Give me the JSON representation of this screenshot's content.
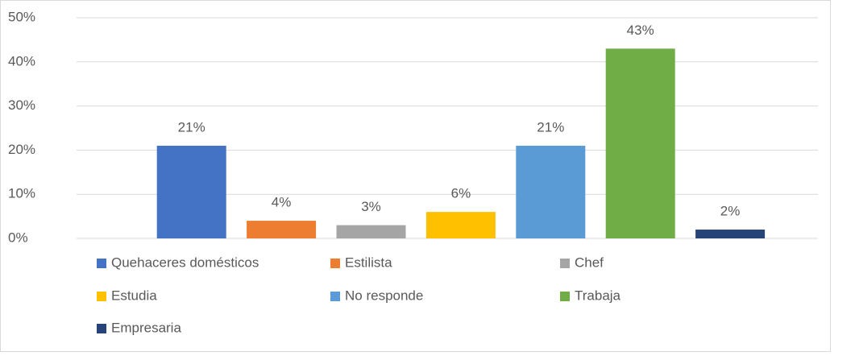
{
  "chart_data": {
    "type": "bar",
    "categories": [
      "Quehaceres domésticos",
      "Estilista",
      "Chef",
      "Estudia",
      "No responde",
      "Trabaja",
      "Empresaria"
    ],
    "values": [
      21,
      4,
      3,
      6,
      21,
      43,
      2
    ],
    "value_labels": [
      "21%",
      "4%",
      "3%",
      "6%",
      "21%",
      "43%",
      "2%"
    ],
    "colors": [
      "#4472c4",
      "#ed7d31",
      "#a5a5a5",
      "#ffc000",
      "#5b9bd5",
      "#70ad47",
      "#264478"
    ],
    "ylim": [
      0,
      50
    ],
    "yticks": [
      {
        "value": 0,
        "label": "0%"
      },
      {
        "value": 10,
        "label": "10%"
      },
      {
        "value": 20,
        "label": "20%"
      },
      {
        "value": 30,
        "label": "30%"
      },
      {
        "value": 40,
        "label": "40%"
      },
      {
        "value": 50,
        "label": "50%"
      }
    ],
    "grid": true,
    "legend": "bottom"
  }
}
